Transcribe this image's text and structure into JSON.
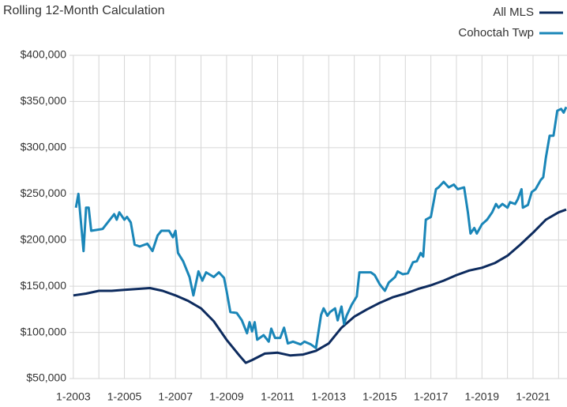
{
  "chart_data": {
    "type": "line",
    "title": "Rolling 12-Month Calculation",
    "xlim": [
      2002.85,
      2022.33
    ],
    "ylim": [
      50000,
      400000
    ],
    "grid": true,
    "legend": "top-right",
    "xticks": [
      {
        "value": 2003,
        "label": "1-2003"
      },
      {
        "value": 2005,
        "label": "1-2005"
      },
      {
        "value": 2007,
        "label": "1-2007"
      },
      {
        "value": 2009,
        "label": "1-2009"
      },
      {
        "value": 2011,
        "label": "1-2011"
      },
      {
        "value": 2013,
        "label": "1-2013"
      },
      {
        "value": 2015,
        "label": "1-2015"
      },
      {
        "value": 2017,
        "label": "1-2017"
      },
      {
        "value": 2019,
        "label": "1-2019"
      },
      {
        "value": 2021,
        "label": "1-2021"
      }
    ],
    "xminorticks": [
      2004,
      2006,
      2008,
      2010,
      2012,
      2014,
      2016,
      2018,
      2020,
      2022
    ],
    "yticks": [
      {
        "value": 50000,
        "label": "$50,000"
      },
      {
        "value": 100000,
        "label": "$100,000"
      },
      {
        "value": 150000,
        "label": "$150,000"
      },
      {
        "value": 200000,
        "label": "$200,000"
      },
      {
        "value": 250000,
        "label": "$250,000"
      },
      {
        "value": 300000,
        "label": "$300,000"
      },
      {
        "value": 350000,
        "label": "$350,000"
      },
      {
        "value": 400000,
        "label": "$400,000"
      }
    ],
    "series": [
      {
        "name": "All MLS",
        "color": "#0d2b5e",
        "x": [
          2003,
          2003.5,
          2004,
          2004.5,
          2005,
          2005.5,
          2006,
          2006.5,
          2007,
          2007.5,
          2008,
          2008.5,
          2009,
          2009.5,
          2009.75,
          2010,
          2010.5,
          2011,
          2011.5,
          2012,
          2012.5,
          2013,
          2013.5,
          2014,
          2014.5,
          2015,
          2015.5,
          2016,
          2016.5,
          2017,
          2017.5,
          2018,
          2018.5,
          2019,
          2019.5,
          2020,
          2020.5,
          2021,
          2021.5,
          2022,
          2022.3
        ],
        "values": [
          140000,
          142000,
          145000,
          145000,
          146000,
          147000,
          148000,
          145000,
          140000,
          134000,
          126000,
          112000,
          92000,
          75000,
          67000,
          70000,
          77000,
          78000,
          75000,
          76000,
          80000,
          88000,
          105000,
          117000,
          125000,
          132000,
          138000,
          142000,
          147000,
          151000,
          156000,
          162000,
          167000,
          170000,
          175000,
          183000,
          195000,
          208000,
          222000,
          230000,
          233000
        ]
      },
      {
        "name": "Cohoctah Twp",
        "color": "#1a86b8",
        "x": [
          2003.1,
          2003.2,
          2003.4,
          2003.5,
          2003.6,
          2003.7,
          2004.15,
          2004.6,
          2004.7,
          2004.8,
          2005.0,
          2005.1,
          2005.25,
          2005.4,
          2005.6,
          2005.9,
          2006.1,
          2006.3,
          2006.45,
          2006.75,
          2006.9,
          2007.0,
          2007.1,
          2007.3,
          2007.55,
          2007.7,
          2007.9,
          2008.05,
          2008.2,
          2008.5,
          2008.7,
          2008.9,
          2009.0,
          2009.15,
          2009.4,
          2009.6,
          2009.8,
          2009.9,
          2010.0,
          2010.1,
          2010.2,
          2010.45,
          2010.65,
          2010.75,
          2010.9,
          2011.1,
          2011.25,
          2011.4,
          2011.6,
          2011.9,
          2012.05,
          2012.3,
          2012.5,
          2012.7,
          2012.8,
          2012.95,
          2013.05,
          2013.25,
          2013.35,
          2013.5,
          2013.6,
          2013.7,
          2013.9,
          2014.1,
          2014.2,
          2014.65,
          2014.8,
          2015.0,
          2015.2,
          2015.35,
          2015.6,
          2015.7,
          2015.9,
          2016.1,
          2016.3,
          2016.45,
          2016.6,
          2016.7,
          2016.8,
          2017.0,
          2017.2,
          2017.3,
          2017.5,
          2017.7,
          2017.9,
          2018.05,
          2018.3,
          2018.45,
          2018.55,
          2018.7,
          2018.8,
          2019.0,
          2019.2,
          2019.4,
          2019.55,
          2019.65,
          2019.8,
          2020.0,
          2020.1,
          2020.3,
          2020.4,
          2020.55,
          2020.6,
          2020.8,
          2020.95,
          2021.1,
          2021.3,
          2021.4,
          2021.5,
          2021.65,
          2021.8,
          2021.95,
          2022.1,
          2022.2,
          2022.3
        ],
        "values": [
          235000,
          250000,
          188000,
          235000,
          235000,
          210000,
          212000,
          228000,
          222000,
          230000,
          222000,
          225000,
          219000,
          195000,
          193000,
          196000,
          188000,
          205000,
          210000,
          210000,
          203000,
          210000,
          186000,
          177000,
          160000,
          140000,
          166000,
          156000,
          165000,
          160000,
          165000,
          159000,
          145000,
          122000,
          121000,
          113000,
          99000,
          111000,
          101000,
          111000,
          92000,
          97000,
          90000,
          104000,
          94000,
          94000,
          105000,
          88000,
          90000,
          87000,
          90000,
          87000,
          83000,
          119000,
          126000,
          118000,
          122000,
          126000,
          113000,
          128000,
          109000,
          118000,
          130000,
          139000,
          165000,
          165000,
          162000,
          152000,
          145000,
          154000,
          160000,
          166000,
          163000,
          164000,
          176000,
          177000,
          186000,
          182000,
          222000,
          225000,
          255000,
          257000,
          263000,
          257000,
          260000,
          255000,
          257000,
          230000,
          207000,
          213000,
          207000,
          217000,
          222000,
          230000,
          239000,
          235000,
          239000,
          235000,
          241000,
          239000,
          244000,
          255000,
          235000,
          238000,
          252000,
          255000,
          265000,
          268000,
          289000,
          313000,
          313000,
          340000,
          342000,
          338000,
          344000
        ]
      }
    ]
  }
}
